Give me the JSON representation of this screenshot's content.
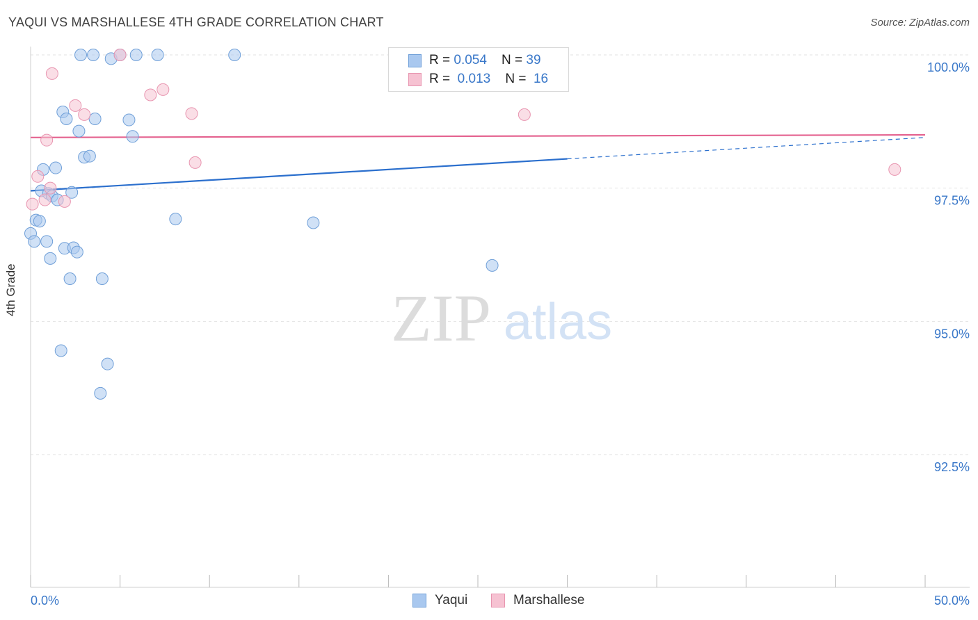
{
  "title": "YAQUI VS MARSHALLESE 4TH GRADE CORRELATION CHART",
  "source": "Source: ZipAtlas.com",
  "watermark": {
    "zip": "ZIP",
    "atlas": "atlas"
  },
  "legend_top": {
    "rows": [
      {
        "r_label": "R = ",
        "r_value": "0.054",
        "n_label": "N = ",
        "n_value": "39"
      },
      {
        "r_label": "R = ",
        "r_value": "0.013",
        "n_label": "N = ",
        "n_value": "16"
      }
    ]
  },
  "chart_data": {
    "type": "scatter",
    "title": "YAQUI VS MARSHALLESE 4TH GRADE CORRELATION CHART",
    "xlabel": "",
    "ylabel": "4th Grade",
    "xlim": [
      0,
      50
    ],
    "ylim": [
      90.2,
      100.5
    ],
    "x_tick_labels": [
      {
        "value": 0,
        "label": "0.0%"
      },
      {
        "value": 50,
        "label": "50.0%"
      }
    ],
    "y_tick_labels": [
      {
        "value": 100.0,
        "label": "100.0%"
      },
      {
        "value": 97.5,
        "label": "97.5%"
      },
      {
        "value": 95.0,
        "label": "95.0%"
      },
      {
        "value": 92.5,
        "label": "92.5%"
      }
    ],
    "x_minor_ticks": [
      0,
      5,
      10,
      15,
      20,
      25,
      30,
      35,
      40,
      45,
      50
    ],
    "colors": {
      "yaqui_fill": "#a9c8ef",
      "yaqui_stroke": "#6f9fd8",
      "yaqui_line": "#2b6fcd",
      "marsh_fill": "#f6c2d2",
      "marsh_stroke": "#e895b0",
      "marsh_line": "#e4628f",
      "axis_label": "#3a78c9",
      "grid": "#e2e2e2"
    },
    "series": [
      {
        "name": "Yaqui",
        "r": 0.054,
        "n": 39,
        "trend": {
          "x0": 0,
          "y0": 97.45,
          "x1": 30,
          "y1": 98.05,
          "dashed_to_x": 50,
          "dashed_to_y": 98.45
        },
        "points": [
          [
            2.8,
            100.0
          ],
          [
            3.5,
            100.0
          ],
          [
            4.5,
            99.93
          ],
          [
            5.0,
            100.0
          ],
          [
            5.9,
            100.0
          ],
          [
            7.1,
            100.0
          ],
          [
            11.4,
            100.0
          ],
          [
            1.8,
            98.93
          ],
          [
            2.0,
            98.8
          ],
          [
            2.7,
            98.57
          ],
          [
            3.6,
            98.8
          ],
          [
            5.5,
            98.78
          ],
          [
            5.7,
            98.47
          ],
          [
            3.0,
            98.08
          ],
          [
            3.3,
            98.1
          ],
          [
            0.7,
            97.85
          ],
          [
            1.4,
            97.88
          ],
          [
            0.6,
            97.45
          ],
          [
            1.0,
            97.4
          ],
          [
            1.2,
            97.35
          ],
          [
            1.5,
            97.28
          ],
          [
            2.3,
            97.42
          ],
          [
            0.3,
            96.9
          ],
          [
            0.5,
            96.88
          ],
          [
            0.0,
            96.65
          ],
          [
            0.2,
            96.5
          ],
          [
            0.9,
            96.5
          ],
          [
            1.9,
            96.37
          ],
          [
            2.4,
            96.38
          ],
          [
            2.6,
            96.3
          ],
          [
            1.1,
            96.18
          ],
          [
            8.1,
            96.92
          ],
          [
            15.8,
            96.85
          ],
          [
            25.8,
            96.05
          ],
          [
            2.2,
            95.8
          ],
          [
            4.0,
            95.8
          ],
          [
            1.7,
            94.45
          ],
          [
            4.3,
            94.2
          ],
          [
            3.9,
            93.65
          ]
        ]
      },
      {
        "name": "Marshallese",
        "r": 0.013,
        "n": 16,
        "trend": {
          "x0": 0,
          "y0": 98.45,
          "x1": 50,
          "y1": 98.5
        },
        "points": [
          [
            1.2,
            99.65
          ],
          [
            5.0,
            100.0
          ],
          [
            7.4,
            99.35
          ],
          [
            6.7,
            99.25
          ],
          [
            2.5,
            99.05
          ],
          [
            3.0,
            98.88
          ],
          [
            9.0,
            98.9
          ],
          [
            27.6,
            98.88
          ],
          [
            0.9,
            98.4
          ],
          [
            9.2,
            97.98
          ],
          [
            48.3,
            97.85
          ],
          [
            0.4,
            97.72
          ],
          [
            1.1,
            97.5
          ],
          [
            0.8,
            97.28
          ],
          [
            1.9,
            97.25
          ],
          [
            0.1,
            97.2
          ]
        ]
      }
    ]
  },
  "legend_bottom": [
    {
      "label": "Yaqui"
    },
    {
      "label": "Marshallese"
    }
  ]
}
